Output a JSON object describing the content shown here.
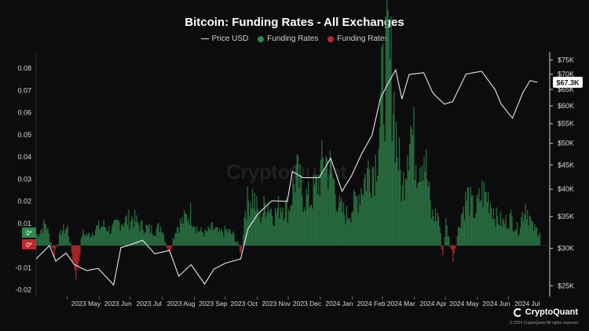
{
  "title": "Bitcoin: Funding Rates - All Exchanges",
  "legend": [
    {
      "label": "Price USD",
      "color": "#e8e8e8",
      "kind": "line"
    },
    {
      "label": "Funding Rates",
      "color": "#2e8b4a",
      "kind": "dot"
    },
    {
      "label": "Funding Rates",
      "color": "#c0282c",
      "kind": "dot"
    }
  ],
  "watermark": "CryptoQuant",
  "brand": {
    "name": "CryptoQuant",
    "copyright": "© 2024 CryptoQuant All rights reserved"
  },
  "price_tag": "$67.3K",
  "zero_tags": {
    "positive": "0*",
    "negative": "0*"
  },
  "colors": {
    "positive": "#2e7d46",
    "negative": "#c0282c",
    "price": "#e8e8e8",
    "background": "#0c0c0e"
  },
  "chart_data": {
    "type": "bar",
    "title": "Bitcoin: Funding Rates - All Exchanges",
    "x_range": [
      "2023-04-01",
      "2024-08-10"
    ],
    "x_ticks": [
      "2023 May",
      "2023 Jun",
      "2023 Jul",
      "2023 Aug",
      "2023 Sep",
      "2023 Oct",
      "2023 Nov",
      "2023 Dec",
      "2024 Jan",
      "2024 Feb",
      "2024 Mar",
      "2024 Apr",
      "2024 May",
      "2024 Jun",
      "2024 Jul"
    ],
    "y_left": {
      "label": "Funding Rates",
      "range": [
        -0.02,
        0.085
      ],
      "ticks": [
        "0.08",
        "0.07",
        "0.06",
        "0.05",
        "0.04",
        "0.03",
        "0.02",
        "0.01",
        "0",
        "-0.01",
        "-0.02"
      ]
    },
    "y_right": {
      "label": "Price USD",
      "scale": "log",
      "range": [
        24000,
        76000
      ],
      "ticks": [
        "$75K",
        "$70K",
        "$65K",
        "$60K",
        "$55K",
        "$50K",
        "$45K",
        "$40K",
        "$35K",
        "$30K",
        "$25K"
      ]
    },
    "series": [
      {
        "name": "Price USD",
        "kind": "line",
        "axis": "right",
        "points": [
          [
            "2023-04-01",
            28500
          ],
          [
            "2023-04-14",
            30400
          ],
          [
            "2023-04-20",
            28200
          ],
          [
            "2023-04-30",
            29300
          ],
          [
            "2023-05-08",
            27700
          ],
          [
            "2023-05-20",
            26900
          ],
          [
            "2023-05-31",
            27200
          ],
          [
            "2023-06-10",
            25800
          ],
          [
            "2023-06-15",
            25100
          ],
          [
            "2023-06-22",
            30100
          ],
          [
            "2023-07-01",
            30500
          ],
          [
            "2023-07-13",
            31200
          ],
          [
            "2023-07-25",
            29200
          ],
          [
            "2023-08-08",
            29700
          ],
          [
            "2023-08-17",
            26200
          ],
          [
            "2023-08-29",
            27700
          ],
          [
            "2023-09-11",
            25200
          ],
          [
            "2023-09-20",
            27100
          ],
          [
            "2023-10-01",
            27900
          ],
          [
            "2023-10-16",
            28500
          ],
          [
            "2023-10-23",
            33000
          ],
          [
            "2023-11-01",
            35300
          ],
          [
            "2023-11-15",
            37800
          ],
          [
            "2023-11-30",
            37700
          ],
          [
            "2023-12-05",
            43600
          ],
          [
            "2023-12-15",
            42300
          ],
          [
            "2023-12-31",
            42300
          ],
          [
            "2024-01-11",
            46500
          ],
          [
            "2024-01-22",
            39600
          ],
          [
            "2024-01-31",
            42600
          ],
          [
            "2024-02-10",
            47500
          ],
          [
            "2024-02-20",
            52000
          ],
          [
            "2024-02-28",
            62000
          ],
          [
            "2024-03-05",
            66000
          ],
          [
            "2024-03-14",
            71500
          ],
          [
            "2024-03-20",
            62000
          ],
          [
            "2024-03-27",
            69900
          ],
          [
            "2024-04-10",
            70500
          ],
          [
            "2024-04-19",
            63800
          ],
          [
            "2024-04-30",
            60500
          ],
          [
            "2024-05-08",
            61200
          ],
          [
            "2024-05-21",
            70000
          ],
          [
            "2024-06-05",
            71000
          ],
          [
            "2024-06-18",
            65000
          ],
          [
            "2024-06-24",
            60500
          ],
          [
            "2024-07-05",
            56500
          ],
          [
            "2024-07-15",
            64000
          ],
          [
            "2024-07-22",
            67800
          ],
          [
            "2024-07-29",
            67300
          ]
        ]
      },
      {
        "name": "Funding Rates",
        "kind": "bar",
        "axis": "left",
        "points": [
          [
            "2023-04-01",
            0.004
          ],
          [
            "2023-04-10",
            0.009
          ],
          [
            "2023-04-18",
            -0.004
          ],
          [
            "2023-04-25",
            0.006
          ],
          [
            "2023-05-01",
            0.007
          ],
          [
            "2023-05-07",
            -0.009
          ],
          [
            "2023-05-10",
            -0.015
          ],
          [
            "2023-05-15",
            0.005
          ],
          [
            "2023-05-22",
            0.004
          ],
          [
            "2023-05-29",
            0.007
          ],
          [
            "2023-06-05",
            0.008
          ],
          [
            "2023-06-12",
            0.006
          ],
          [
            "2023-06-19",
            0.009
          ],
          [
            "2023-06-26",
            0.01
          ],
          [
            "2023-07-03",
            0.011
          ],
          [
            "2023-07-10",
            0.008
          ],
          [
            "2023-07-17",
            0.007
          ],
          [
            "2023-07-24",
            0.006
          ],
          [
            "2023-07-31",
            0.008
          ],
          [
            "2023-08-07",
            -0.004
          ],
          [
            "2023-08-14",
            0.007
          ],
          [
            "2023-08-21",
            0.01
          ],
          [
            "2023-08-28",
            0.013
          ],
          [
            "2023-09-04",
            0.006
          ],
          [
            "2023-09-11",
            0.005
          ],
          [
            "2023-09-18",
            0.007
          ],
          [
            "2023-09-25",
            0.005
          ],
          [
            "2023-10-02",
            0.006
          ],
          [
            "2023-10-09",
            0.004
          ],
          [
            "2023-10-16",
            -0.004
          ],
          [
            "2023-10-20",
            0.016
          ],
          [
            "2023-10-27",
            0.02
          ],
          [
            "2023-11-03",
            0.011
          ],
          [
            "2023-11-10",
            0.018
          ],
          [
            "2023-11-17",
            0.012
          ],
          [
            "2023-11-24",
            0.017
          ],
          [
            "2023-12-01",
            0.014
          ],
          [
            "2023-12-08",
            0.029
          ],
          [
            "2023-12-15",
            0.02
          ],
          [
            "2023-12-22",
            0.018
          ],
          [
            "2023-12-29",
            0.025
          ],
          [
            "2024-01-05",
            0.035
          ],
          [
            "2024-01-12",
            0.028
          ],
          [
            "2024-01-19",
            0.015
          ],
          [
            "2024-01-26",
            0.012
          ],
          [
            "2024-02-02",
            0.016
          ],
          [
            "2024-02-09",
            0.023
          ],
          [
            "2024-02-16",
            0.03
          ],
          [
            "2024-02-23",
            0.033
          ],
          [
            "2024-03-01",
            0.062
          ],
          [
            "2024-03-05",
            0.075
          ],
          [
            "2024-03-10",
            0.067
          ],
          [
            "2024-03-15",
            0.039
          ],
          [
            "2024-03-20",
            0.021
          ],
          [
            "2024-03-27",
            0.05
          ],
          [
            "2024-04-03",
            0.034
          ],
          [
            "2024-04-10",
            0.038
          ],
          [
            "2024-04-17",
            0.012
          ],
          [
            "2024-04-24",
            0.012
          ],
          [
            "2024-04-28",
            -0.005
          ],
          [
            "2024-05-01",
            0.009
          ],
          [
            "2024-05-08",
            -0.006
          ],
          [
            "2024-05-15",
            0.011
          ],
          [
            "2024-05-22",
            0.02
          ],
          [
            "2024-05-29",
            0.013
          ],
          [
            "2024-06-05",
            0.021
          ],
          [
            "2024-06-12",
            0.019
          ],
          [
            "2024-06-19",
            0.011
          ],
          [
            "2024-06-26",
            0.009
          ],
          [
            "2024-07-03",
            0.011
          ],
          [
            "2024-07-10",
            0.006
          ],
          [
            "2024-07-17",
            0.017
          ],
          [
            "2024-07-24",
            0.007
          ],
          [
            "2024-07-29",
            0.006
          ]
        ]
      }
    ],
    "grid": "off",
    "legend": "top-center"
  }
}
